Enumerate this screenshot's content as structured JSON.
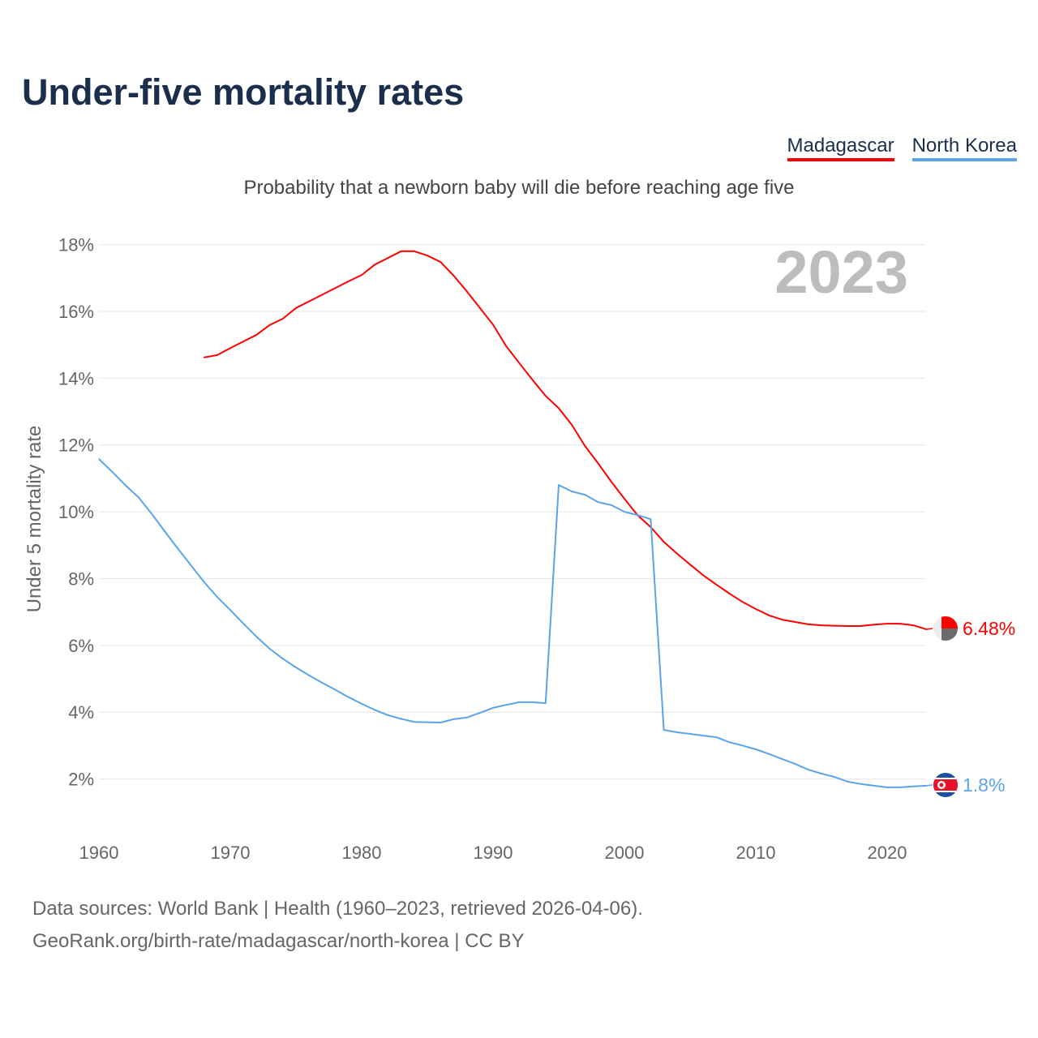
{
  "title": "Under-five mortality rates",
  "subtitle": "Probability that a newborn baby will die before reaching age five",
  "footer": {
    "line1": "Data sources: World Bank | Health (1960–2023, retrieved 2026-04-06).",
    "line2": "GeoRank.org/birth-rate/madagascar/north-korea | CC BY"
  },
  "chart_data": {
    "type": "line",
    "title": "Under-five mortality rates",
    "ylabel": "Under 5 mortality rate",
    "xlabel": "",
    "year_label": "2023",
    "xlim": [
      1960,
      2023
    ],
    "ylim": [
      0,
      18
    ],
    "xticks": [
      1960,
      1970,
      1980,
      1990,
      2000,
      2010,
      2020
    ],
    "yticks": [
      2,
      4,
      6,
      8,
      10,
      12,
      14,
      16,
      18
    ],
    "ytick_labels": [
      "2%",
      "4%",
      "6%",
      "8%",
      "10%",
      "12%",
      "14%",
      "16%",
      "18%"
    ],
    "grid": true,
    "legend": "top-right",
    "series": [
      {
        "name": "Madagascar",
        "color": "#ff0000",
        "end_label": "6.48%",
        "x": [
          1968,
          1969,
          1970,
          1971,
          1972,
          1973,
          1974,
          1975,
          1976,
          1977,
          1978,
          1979,
          1980,
          1981,
          1982,
          1983,
          1984,
          1985,
          1986,
          1987,
          1988,
          1989,
          1990,
          1991,
          1992,
          1993,
          1994,
          1995,
          1996,
          1997,
          1998,
          1999,
          2000,
          2001,
          2002,
          2003,
          2004,
          2005,
          2006,
          2007,
          2008,
          2009,
          2010,
          2011,
          2012,
          2013,
          2014,
          2015,
          2016,
          2017,
          2018,
          2019,
          2020,
          2021,
          2022,
          2023
        ],
        "values": [
          14.62,
          14.69,
          14.9,
          15.1,
          15.3,
          15.59,
          15.78,
          16.1,
          16.3,
          16.5,
          16.7,
          16.9,
          17.09,
          17.4,
          17.6,
          17.8,
          17.8,
          17.67,
          17.48,
          17.07,
          16.6,
          16.1,
          15.6,
          14.96,
          14.45,
          13.95,
          13.47,
          13.1,
          12.6,
          11.97,
          11.45,
          10.9,
          10.39,
          9.9,
          9.54,
          9.1,
          8.75,
          8.42,
          8.1,
          7.82,
          7.55,
          7.3,
          7.09,
          6.9,
          6.77,
          6.7,
          6.63,
          6.6,
          6.59,
          6.58,
          6.58,
          6.62,
          6.65,
          6.65,
          6.6,
          6.48
        ]
      },
      {
        "name": "North Korea",
        "color": "#5ba4ea",
        "end_label": "1.8%",
        "x": [
          1960,
          1961,
          1962,
          1963,
          1964,
          1965,
          1966,
          1967,
          1968,
          1969,
          1970,
          1971,
          1972,
          1973,
          1974,
          1975,
          1976,
          1977,
          1978,
          1979,
          1980,
          1981,
          1982,
          1983,
          1984,
          1985,
          1986,
          1987,
          1988,
          1989,
          1990,
          1991,
          1992,
          1993,
          1994,
          1995,
          1996,
          1997,
          1998,
          1999,
          2000,
          2001,
          2002,
          2003,
          2004,
          2005,
          2006,
          2007,
          2008,
          2009,
          2010,
          2011,
          2012,
          2013,
          2014,
          2015,
          2016,
          2017,
          2018,
          2019,
          2020,
          2021,
          2022,
          2023
        ],
        "values": [
          11.58,
          11.2,
          10.8,
          10.44,
          9.95,
          9.42,
          8.9,
          8.4,
          7.9,
          7.45,
          7.06,
          6.65,
          6.26,
          5.9,
          5.6,
          5.34,
          5.1,
          4.88,
          4.67,
          4.45,
          4.25,
          4.07,
          3.91,
          3.8,
          3.71,
          3.7,
          3.69,
          3.79,
          3.84,
          3.98,
          4.13,
          4.22,
          4.3,
          4.3,
          4.27,
          10.8,
          10.61,
          10.51,
          10.29,
          10.2,
          10.0,
          9.9,
          9.78,
          3.47,
          3.4,
          3.35,
          3.3,
          3.25,
          3.1,
          3.0,
          2.89,
          2.75,
          2.6,
          2.45,
          2.28,
          2.16,
          2.06,
          1.92,
          1.85,
          1.8,
          1.75,
          1.75,
          1.78,
          1.8
        ]
      }
    ]
  }
}
